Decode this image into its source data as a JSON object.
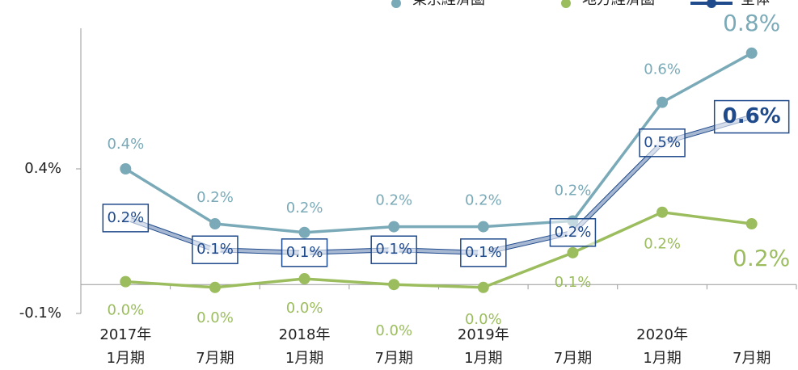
{
  "chart_data": {
    "type": "line",
    "categories": [
      [
        "2017年",
        "1月期"
      ],
      [
        "7月期"
      ],
      [
        "2018年",
        "1月期"
      ],
      [
        "7月期"
      ],
      [
        "2019年",
        "1月期"
      ],
      [
        "7月期"
      ],
      [
        "2020年",
        "1月期"
      ],
      [
        "7月期"
      ]
    ],
    "ylim": [
      -0.1,
      0.9
    ],
    "yticks": [
      {
        "value": 0.4,
        "label": "0.4%"
      },
      {
        "value": -0.1,
        "label": "-0.1%"
      }
    ],
    "series": [
      {
        "name": "東京経済圏",
        "color": "#7aaab8",
        "values": [
          0.4,
          0.21,
          0.18,
          0.2,
          0.2,
          0.22,
          0.63,
          0.8
        ],
        "value_labels": [
          "0.4%",
          "0.2%",
          "0.2%",
          "0.2%",
          "0.2%",
          "0.2%",
          "0.6%",
          "0.8%"
        ]
      },
      {
        "name": "地方経済圏",
        "color": "#9bbd5e",
        "values": [
          0.01,
          -0.01,
          0.02,
          0.0,
          -0.01,
          0.11,
          0.25,
          0.21
        ],
        "value_labels": [
          "0.0%",
          "0.0%",
          "0.0%",
          "0.0%",
          "0.0%",
          "0.1%",
          "0.2%",
          "0.2%"
        ]
      },
      {
        "name": "全体",
        "color": "#1f4a8c",
        "values": [
          0.23,
          0.12,
          0.11,
          0.12,
          0.11,
          0.18,
          0.49,
          0.58
        ],
        "value_labels": [
          "0.2%",
          "0.1%",
          "0.1%",
          "0.1%",
          "0.1%",
          "0.2%",
          "0.5%",
          "0.6%"
        ]
      }
    ]
  }
}
